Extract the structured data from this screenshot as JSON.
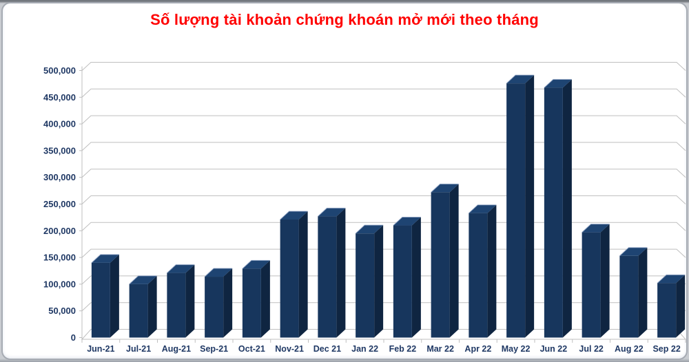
{
  "header": {
    "title": "Số lượng tài khoản chứng khoán mở mới theo tháng",
    "title_color": "#ff0000"
  },
  "chart_data": {
    "type": "bar",
    "style": "3d-column",
    "title": "Số lượng tài khoản chứng khoán mở mới theo tháng",
    "categories": [
      "Jun-21",
      "Jul-21",
      "Aug-21",
      "Sep-21",
      "Oct-21",
      "Nov-21",
      "Dec 21",
      "Jan 22",
      "Feb 22",
      "Mar 22",
      "Apr 22",
      "May 22",
      "Jun 22",
      "Jul 22",
      "Aug 22",
      "Sep 22"
    ],
    "values": [
      140000,
      100000,
      121000,
      114000,
      129000,
      221000,
      227000,
      195000,
      210000,
      272000,
      233000,
      476000,
      468000,
      197000,
      153000,
      102000
    ],
    "xlabel": "",
    "ylabel": "",
    "ylim": [
      0,
      500000
    ],
    "ytick_step": 50000,
    "ytick_labels": [
      "0",
      "50,000",
      "100,000",
      "150,000",
      "200,000",
      "250,000",
      "300,000",
      "350,000",
      "400,000",
      "450,000",
      "500,000"
    ],
    "grid": true,
    "legend": "none",
    "colors": {
      "bar_front": "#17365d",
      "bar_side": "#0f2541",
      "bar_top": "#1e4472",
      "bar_top_highlight": "#8fa3c4",
      "gridline": "#bfbfbf",
      "axis_line": "#bfbfbf",
      "axis_label": "#1f3864"
    }
  }
}
